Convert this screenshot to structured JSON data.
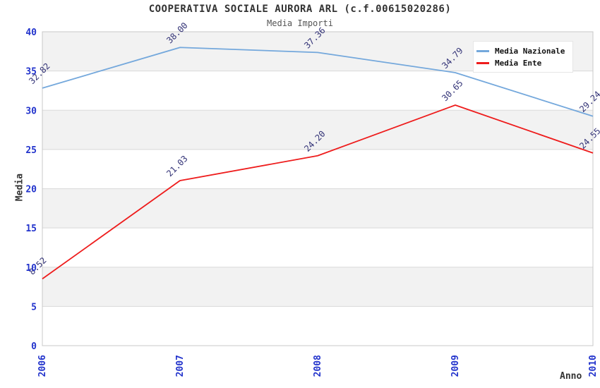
{
  "chart_data": {
    "type": "line",
    "title": "COOPERATIVA SOCIALE AURORA ARL (c.f.00615020286)",
    "subtitle": "Media Importi",
    "x": [
      "2006",
      "2007",
      "2008",
      "2009",
      "2010"
    ],
    "series": [
      {
        "name": "Media Nazionale",
        "color": "#74a8dc",
        "values": [
          32.82,
          38.0,
          37.36,
          34.79,
          29.24
        ]
      },
      {
        "name": "Media Ente",
        "color": "#ee1c1c",
        "values": [
          8.52,
          21.03,
          24.2,
          30.65,
          24.55
        ]
      }
    ],
    "xlabel": "Anno",
    "ylabel": "Media",
    "ylim": [
      0,
      40
    ],
    "ytick_step": 5,
    "yticks": [
      0,
      5,
      10,
      15,
      20,
      25,
      30,
      35,
      40
    ],
    "legend_position": "top-right",
    "grid": "horizontal-bands-alternating",
    "data_labels": true,
    "colors": {
      "tick_label": "#2233cc",
      "data_label": "#333377",
      "band_fill": "#f2f2f2",
      "grid_line": "#d9d9d9",
      "plot_border": "#c8c8c8",
      "title": "#333333",
      "subtitle": "#555555",
      "legend_text": "#111111"
    }
  }
}
